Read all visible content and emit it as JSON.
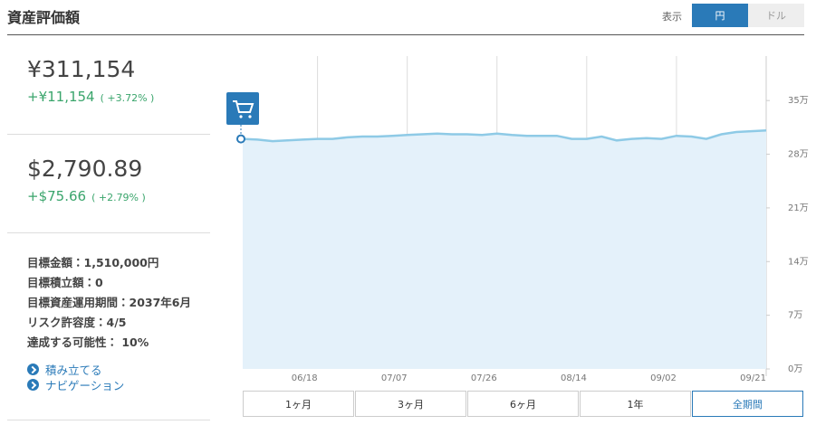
{
  "header": {
    "title": "資産評価額"
  },
  "display_toggle": {
    "label": "表示",
    "options": [
      "円",
      "ドル"
    ],
    "active": 0
  },
  "summary": [
    {
      "amount": "¥311,154",
      "change": "+¥11,154",
      "pct": "( +3.72% )"
    },
    {
      "amount": "$2,790.89",
      "change": "+$75.66",
      "pct": "( +2.79% )"
    }
  ],
  "details": [
    "目標金額：1,510,000円",
    "目標積立額：0",
    "目標資産運用期間：2037年6月",
    "リスク許容度：4/5",
    "達成する可能性： 10%"
  ],
  "links": [
    "積み立てる",
    "ナビゲーション"
  ],
  "periods": [
    "1ヶ月",
    "3ヶ月",
    "6ヶ月",
    "1年",
    "全期間"
  ],
  "active_period": 4,
  "chart_data": {
    "type": "area",
    "categories": [
      null,
      null,
      null,
      null,
      null,
      "06/18",
      null,
      null,
      null,
      null,
      null,
      "07/07",
      null,
      null,
      null,
      null,
      null,
      "07/26",
      null,
      null,
      null,
      null,
      null,
      "08/14",
      null,
      null,
      null,
      null,
      null,
      "09/02",
      null,
      null,
      null,
      null,
      null,
      "09/21"
    ],
    "values": [
      30.0,
      29.9,
      29.7,
      29.8,
      29.9,
      30.0,
      30.0,
      30.2,
      30.3,
      30.3,
      30.4,
      30.5,
      30.6,
      30.7,
      30.6,
      30.6,
      30.5,
      30.7,
      30.5,
      30.4,
      30.4,
      30.4,
      30.0,
      30.0,
      30.3,
      29.8,
      30.0,
      30.1,
      30.0,
      30.4,
      30.3,
      30.0,
      30.6,
      30.9,
      31.0,
      31.1
    ],
    "color": "#8ecae6",
    "fill": "#e4f1fa",
    "ylim": [
      0,
      40.8
    ],
    "yticks": [
      {
        "value": 0,
        "label": "0万"
      },
      {
        "value": 7,
        "label": "7万"
      },
      {
        "value": 14,
        "label": "14万"
      },
      {
        "value": 21,
        "label": "21万"
      },
      {
        "value": 28,
        "label": "28万"
      },
      {
        "value": 35,
        "label": "35万"
      }
    ],
    "grid": "x"
  }
}
